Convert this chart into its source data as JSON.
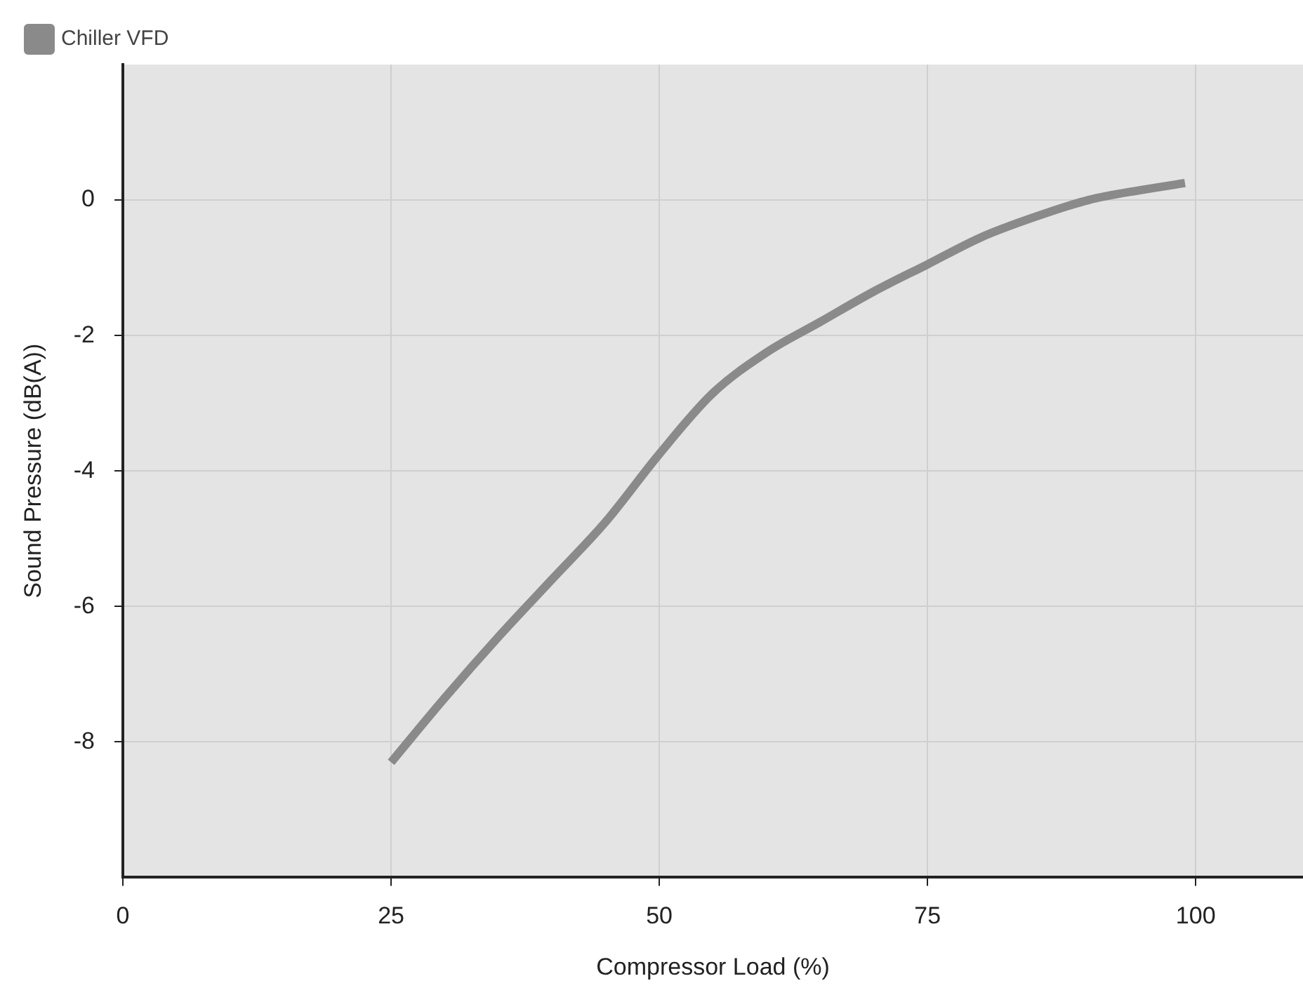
{
  "chart_data": {
    "type": "line",
    "xlabel": "Compressor Load (%)",
    "ylabel": "Sound Pressure (dB(A))",
    "xlim": [
      0,
      110
    ],
    "xticks": [
      0,
      25,
      50,
      75,
      100
    ],
    "ylim": [
      -10,
      2
    ],
    "yticks": [
      -8,
      -6,
      -4,
      -2,
      0
    ],
    "grid": true,
    "legend": "top left",
    "marker": "none",
    "line_style": "solid",
    "series": [
      {
        "name": "Chiller VFD",
        "color": "#8a8a8a",
        "x": [
          25,
          30,
          35,
          40,
          45,
          50,
          55,
          60,
          65,
          70,
          75,
          80,
          85,
          90,
          95,
          99
        ],
        "values": [
          -8.3,
          -7.35,
          -6.45,
          -5.6,
          -4.75,
          -3.75,
          -2.85,
          -2.25,
          -1.8,
          -1.35,
          -0.95,
          -0.55,
          -0.25,
          0,
          0.15,
          0.25
        ]
      }
    ]
  }
}
